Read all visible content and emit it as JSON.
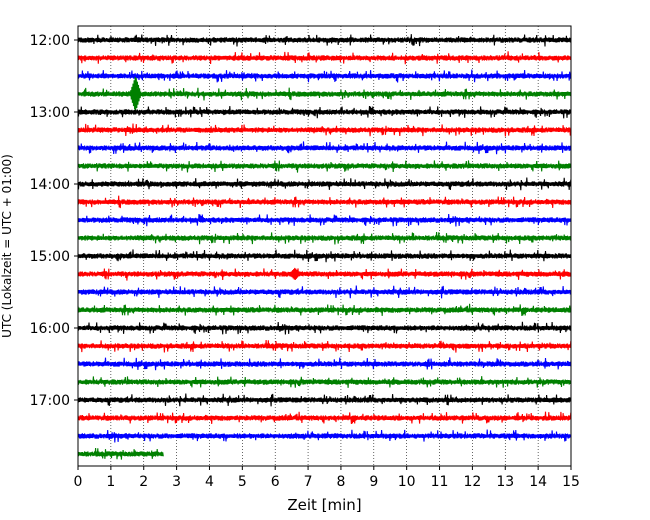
{
  "chart_data": {
    "type": "line",
    "title": "",
    "xlabel": "Zeit  [min]",
    "ylabel": "UTC (Lokalzeit = UTC + 01:00)",
    "xlim": [
      0,
      15
    ],
    "x_ticks": [
      0,
      1,
      2,
      3,
      4,
      5,
      6,
      7,
      8,
      9,
      10,
      11,
      12,
      13,
      14,
      15
    ],
    "x_tick_labels": [
      "0",
      "1",
      "2",
      "3",
      "4",
      "5",
      "6",
      "7",
      "8",
      "9",
      "10",
      "11",
      "12",
      "13",
      "14",
      "15"
    ],
    "y_tick_labels": [
      "12:00",
      "13:00",
      "14:00",
      "15:00",
      "16:00",
      "17:00"
    ],
    "grid": "vertical-dotted",
    "trace_interval_minutes": 15,
    "trace_colors": [
      "#000000",
      "#ff0000",
      "#0000ff",
      "#008000"
    ],
    "traces": [
      {
        "start": "12:00",
        "color": "#000000",
        "events": []
      },
      {
        "start": "12:15",
        "color": "#ff0000",
        "events": []
      },
      {
        "start": "12:30",
        "color": "#0000ff",
        "events": []
      },
      {
        "start": "12:45",
        "color": "#008000",
        "events": [
          {
            "minute": 1.75,
            "amplitude": 1.0
          }
        ]
      },
      {
        "start": "13:00",
        "color": "#000000",
        "events": []
      },
      {
        "start": "13:15",
        "color": "#ff0000",
        "events": []
      },
      {
        "start": "13:30",
        "color": "#0000ff",
        "events": []
      },
      {
        "start": "13:45",
        "color": "#008000",
        "events": []
      },
      {
        "start": "14:00",
        "color": "#000000",
        "events": []
      },
      {
        "start": "14:15",
        "color": "#ff0000",
        "events": []
      },
      {
        "start": "14:30",
        "color": "#0000ff",
        "events": []
      },
      {
        "start": "14:45",
        "color": "#008000",
        "events": []
      },
      {
        "start": "15:00",
        "color": "#000000",
        "events": []
      },
      {
        "start": "15:15",
        "color": "#ff0000",
        "events": [
          {
            "minute": 6.6,
            "amplitude": 0.35
          }
        ]
      },
      {
        "start": "15:30",
        "color": "#0000ff",
        "events": []
      },
      {
        "start": "15:45",
        "color": "#008000",
        "events": []
      },
      {
        "start": "16:00",
        "color": "#000000",
        "events": []
      },
      {
        "start": "16:15",
        "color": "#ff0000",
        "events": []
      },
      {
        "start": "16:30",
        "color": "#0000ff",
        "events": []
      },
      {
        "start": "16:45",
        "color": "#008000",
        "events": []
      },
      {
        "start": "17:00",
        "color": "#000000",
        "events": []
      },
      {
        "start": "17:15",
        "color": "#ff0000",
        "events": []
      },
      {
        "start": "17:30",
        "color": "#0000ff",
        "events": []
      },
      {
        "start": "17:45",
        "color": "#008000",
        "events": [],
        "end_minute": 2.6
      }
    ]
  }
}
